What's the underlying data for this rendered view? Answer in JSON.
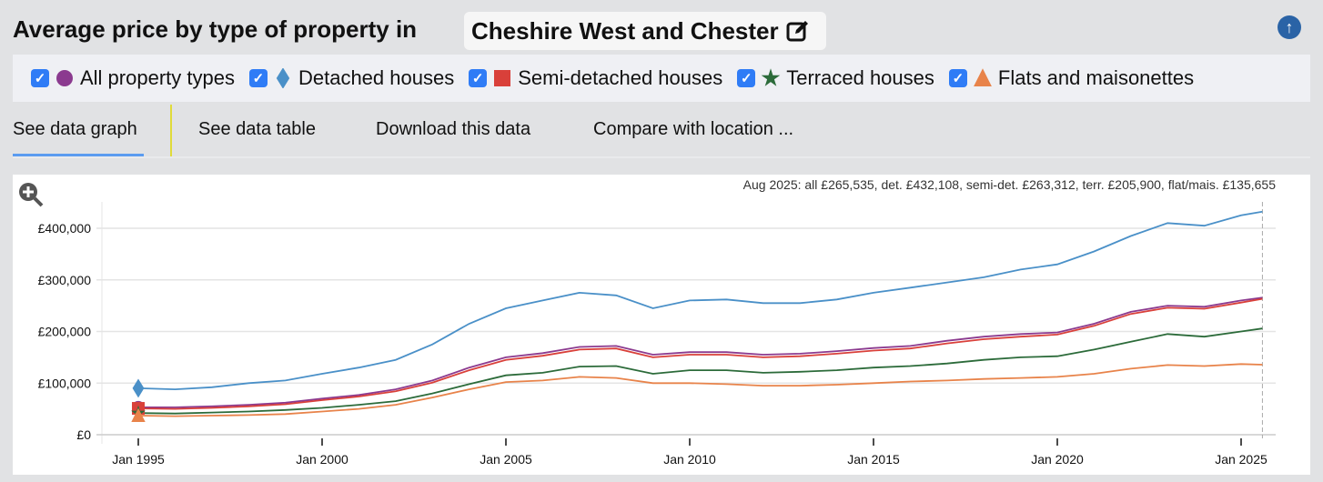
{
  "header": {
    "title": "Average price by type of property in",
    "location": "Cheshire West and Chester",
    "edit_icon": "edit-icon",
    "up_icon": "arrow-up-circle-icon"
  },
  "legend": [
    {
      "label": "All property types",
      "marker": "circle",
      "color": "#8b3a8f",
      "checked": true
    },
    {
      "label": "Detached houses",
      "marker": "diamond",
      "color": "#4a90c8",
      "checked": true
    },
    {
      "label": "Semi-detached houses",
      "marker": "square",
      "color": "#d9403a",
      "checked": true
    },
    {
      "label": "Terraced houses",
      "marker": "star",
      "color": "#2c6b3a",
      "checked": true
    },
    {
      "label": "Flats and maisonettes",
      "marker": "triangle",
      "color": "#e8834a",
      "checked": true
    }
  ],
  "tabs": [
    {
      "label": "See data graph",
      "active": true
    },
    {
      "label": "See data table"
    },
    {
      "label": "Download this data"
    },
    {
      "label": "Compare with location ..."
    }
  ],
  "chart_data": {
    "type": "line",
    "summary": "Aug 2025: all £265,535, det. £432,108, semi-det. £263,312, terr. £205,900, flat/mais. £135,655",
    "x": [
      1995,
      1996,
      1997,
      1998,
      1999,
      2000,
      2001,
      2002,
      2003,
      2004,
      2005,
      2006,
      2007,
      2008,
      2009,
      2010,
      2011,
      2012,
      2013,
      2014,
      2015,
      2016,
      2017,
      2018,
      2019,
      2020,
      2021,
      2022,
      2023,
      2024,
      2025,
      2025.58
    ],
    "xticks": [
      "Jan 1995",
      "Jan 2000",
      "Jan 2005",
      "Jan 2010",
      "Jan 2015",
      "Jan 2020",
      "Jan 2025"
    ],
    "yticks": [
      "£0",
      "£100,000",
      "£200,000",
      "£300,000",
      "£400,000"
    ],
    "ylim": [
      0,
      400000
    ],
    "grid": true,
    "series": [
      {
        "name": "Detached houses",
        "color": "#4a90c8",
        "values": [
          90000,
          88000,
          92000,
          100000,
          105000,
          118000,
          130000,
          145000,
          175000,
          215000,
          245000,
          260000,
          275000,
          270000,
          245000,
          260000,
          262000,
          255000,
          255000,
          262000,
          275000,
          285000,
          295000,
          305000,
          320000,
          330000,
          355000,
          385000,
          410000,
          405000,
          425000,
          432108
        ]
      },
      {
        "name": "All property types",
        "color": "#8b3a8f",
        "values": [
          53000,
          53000,
          55000,
          58000,
          62000,
          70000,
          77000,
          88000,
          105000,
          130000,
          150000,
          158000,
          170000,
          172000,
          155000,
          160000,
          160000,
          155000,
          157000,
          162000,
          168000,
          172000,
          182000,
          190000,
          195000,
          198000,
          215000,
          238000,
          250000,
          248000,
          260000,
          265535
        ]
      },
      {
        "name": "Semi-detached houses",
        "color": "#d9403a",
        "values": [
          51000,
          50000,
          52000,
          55000,
          59000,
          67000,
          74000,
          84000,
          101000,
          125000,
          145000,
          153000,
          165000,
          167000,
          150000,
          155000,
          155000,
          150000,
          152000,
          157000,
          163000,
          167000,
          177000,
          185000,
          190000,
          194000,
          211000,
          234000,
          246000,
          244000,
          256000,
          263312
        ]
      },
      {
        "name": "Terraced houses",
        "color": "#2c6b3a",
        "values": [
          42000,
          41000,
          43000,
          45000,
          48000,
          52000,
          58000,
          65000,
          80000,
          98000,
          115000,
          120000,
          132000,
          133000,
          118000,
          125000,
          125000,
          120000,
          122000,
          125000,
          130000,
          133000,
          138000,
          145000,
          150000,
          152000,
          165000,
          180000,
          195000,
          190000,
          200000,
          205900
        ]
      },
      {
        "name": "Flats and maisonettes",
        "color": "#e8834a",
        "values": [
          37000,
          36000,
          37000,
          38000,
          40000,
          45000,
          50000,
          58000,
          72000,
          88000,
          102000,
          105000,
          112000,
          110000,
          100000,
          100000,
          98000,
          95000,
          95000,
          97000,
          100000,
          103000,
          105000,
          108000,
          110000,
          112000,
          118000,
          128000,
          135000,
          133000,
          137000,
          135655
        ]
      }
    ]
  }
}
